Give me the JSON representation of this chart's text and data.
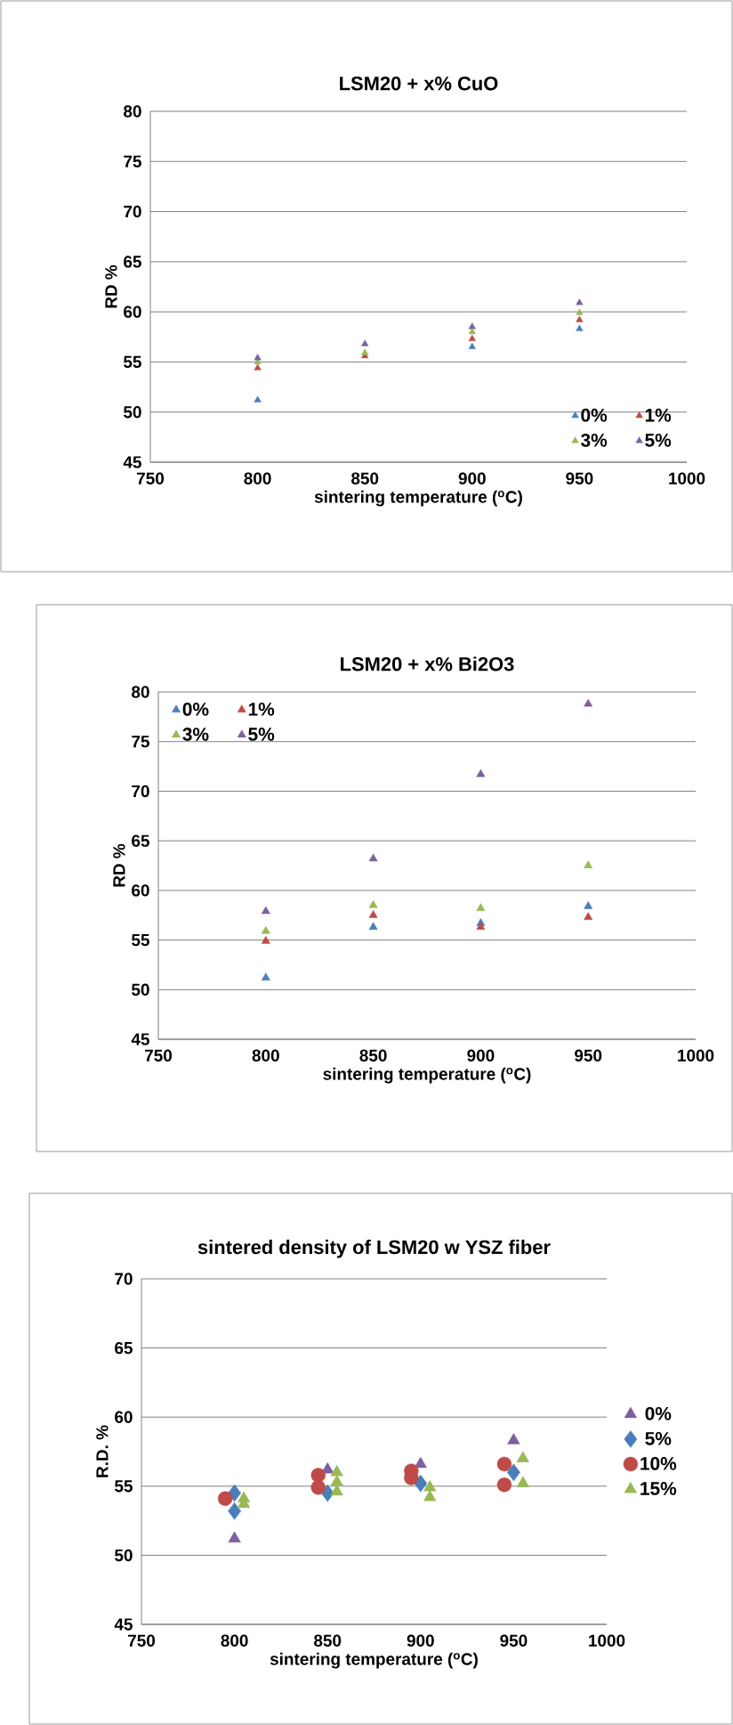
{
  "chart_data": [
    {
      "type": "scatter",
      "title": "LSM20 + x% CuO",
      "xlabel": "sintering temperature ($^{o}$C)",
      "ylabel": "RD %",
      "xlim": [
        750,
        1000
      ],
      "ylim": [
        45,
        80
      ],
      "xticks": [
        750,
        800,
        850,
        900,
        950,
        1000
      ],
      "yticks": [
        45,
        50,
        55,
        60,
        65,
        70,
        75,
        80
      ],
      "grid": "y",
      "legend": "bottom right",
      "marker": "triangle",
      "series": [
        {
          "name": "0%",
          "color": "#4a7ebb",
          "x": [
            800,
            850,
            900,
            950
          ],
          "values": [
            51.2,
            null,
            56.5,
            58.3
          ]
        },
        {
          "name": "1%",
          "color": "#be4b48",
          "x": [
            800,
            850,
            900,
            950
          ],
          "values": [
            54.4,
            55.6,
            57.3,
            59.2
          ]
        },
        {
          "name": "3%",
          "color": "#98b954",
          "x": [
            800,
            850,
            900,
            950
          ],
          "values": [
            55.0,
            55.9,
            58.0,
            59.9
          ]
        },
        {
          "name": "5%",
          "color": "#7d60a0",
          "x": [
            800,
            850,
            900,
            950
          ],
          "values": [
            55.4,
            56.8,
            58.5,
            60.9
          ]
        }
      ]
    },
    {
      "type": "scatter",
      "title": "LSM20 + x% Bi2O3",
      "xlabel": "sintering temperature ($^{o}$C)",
      "ylabel": "RD %",
      "xlim": [
        750,
        1000
      ],
      "ylim": [
        45,
        80
      ],
      "xticks": [
        750,
        800,
        850,
        900,
        950,
        1000
      ],
      "yticks": [
        45,
        50,
        55,
        60,
        65,
        70,
        75,
        80
      ],
      "grid": "y",
      "legend": "top left",
      "marker": "triangle",
      "series": [
        {
          "name": "0%",
          "color": "#4a7ebb",
          "x": [
            800,
            850,
            900,
            950
          ],
          "values": [
            51.2,
            56.3,
            56.7,
            58.4
          ]
        },
        {
          "name": "1%",
          "color": "#be4b48",
          "x": [
            800,
            850,
            900,
            950
          ],
          "values": [
            54.9,
            57.5,
            56.3,
            57.3
          ]
        },
        {
          "name": "3%",
          "color": "#98b954",
          "x": [
            800,
            850,
            900,
            950
          ],
          "values": [
            55.9,
            58.5,
            58.2,
            62.5
          ]
        },
        {
          "name": "5%",
          "color": "#7d60a0",
          "x": [
            800,
            850,
            900,
            950
          ],
          "values": [
            57.9,
            63.2,
            71.7,
            78.8
          ]
        }
      ]
    },
    {
      "type": "scatter",
      "title": "sintered density of LSM20 w YSZ fiber",
      "xlabel": "sintering temperature ($^{o}$C)",
      "ylabel": "R.D. %",
      "xlim": [
        750,
        1000
      ],
      "ylim": [
        45,
        70
      ],
      "xticks": [
        750,
        800,
        850,
        900,
        950,
        1000
      ],
      "yticks": [
        45,
        50,
        55,
        60,
        65,
        70
      ],
      "grid": "y",
      "legend": "right",
      "series": [
        {
          "name": "0%",
          "color": "#7d60a0",
          "marker": "triangle",
          "x": [
            800,
            850,
            900,
            950
          ],
          "values": [
            51.2,
            56.2,
            56.6,
            58.3
          ]
        },
        {
          "name": "5%",
          "color": "#4a7ebb",
          "marker": "diamond",
          "x": [
            800,
            800,
            850,
            900,
            950
          ],
          "values": [
            54.5,
            53.2,
            54.5,
            55.2,
            56.0
          ]
        },
        {
          "name": "10%",
          "color": "#be4b48",
          "marker": "circle",
          "x": [
            795,
            845,
            845,
            895,
            895,
            945,
            945
          ],
          "values": [
            54.1,
            55.8,
            54.9,
            56.1,
            55.6,
            56.6,
            55.1
          ]
        },
        {
          "name": "15%",
          "color": "#98b954",
          "marker": "triangle",
          "x": [
            805,
            805,
            855,
            855,
            855,
            905,
            905,
            955,
            955
          ],
          "values": [
            54.1,
            53.7,
            56.0,
            55.3,
            54.6,
            54.9,
            54.2,
            57.0,
            55.2
          ]
        }
      ]
    }
  ]
}
